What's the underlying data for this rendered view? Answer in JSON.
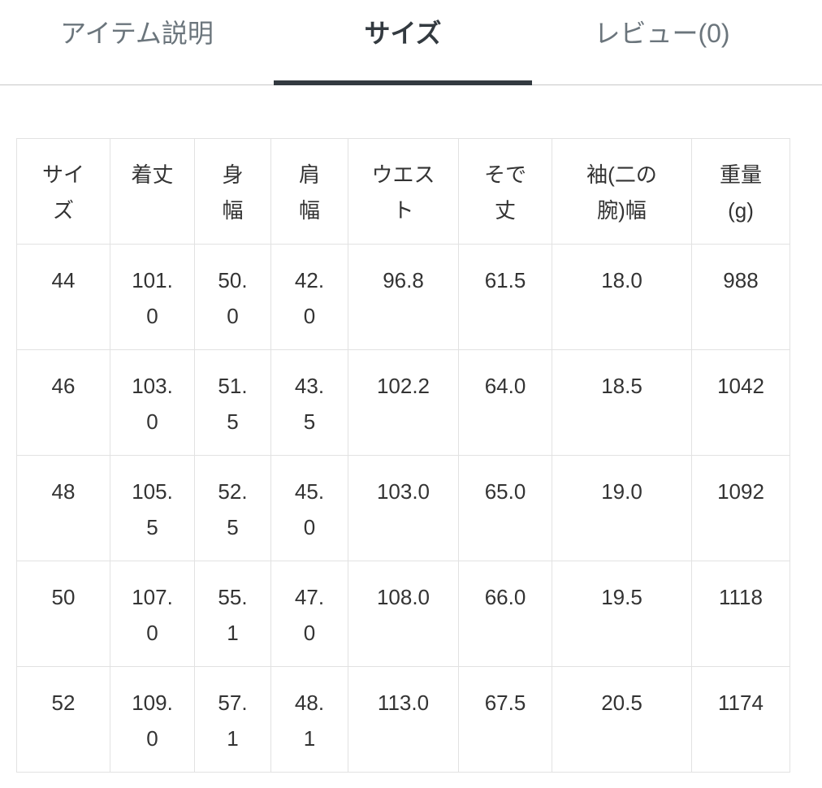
{
  "tabs": [
    {
      "label": "アイテム説明",
      "active": false
    },
    {
      "label": "サイズ",
      "active": true
    },
    {
      "label": "レビュー(0)",
      "active": false
    }
  ],
  "size_table": {
    "headers": [
      "サイズ",
      "着丈",
      "身幅",
      "肩幅",
      "ウエスト",
      "そで丈",
      "袖(二の腕)幅",
      "重量(g)"
    ],
    "rows": [
      [
        "44",
        "101.0",
        "50.0",
        "42.0",
        "96.8",
        "61.5",
        "18.0",
        "988"
      ],
      [
        "46",
        "103.0",
        "51.5",
        "43.5",
        "102.2",
        "64.0",
        "18.5",
        "1042"
      ],
      [
        "48",
        "105.5",
        "52.5",
        "45.0",
        "103.0",
        "65.0",
        "19.0",
        "1092"
      ],
      [
        "50",
        "107.0",
        "55.1",
        "47.0",
        "108.0",
        "66.0",
        "19.5",
        "1118"
      ],
      [
        "52",
        "109.0",
        "57.1",
        "48.1",
        "113.0",
        "67.5",
        "20.5",
        "1174"
      ]
    ]
  },
  "colors": {
    "active_tab": "#333a40",
    "inactive_tab": "#6b757c",
    "border": "#e2e2e2"
  }
}
